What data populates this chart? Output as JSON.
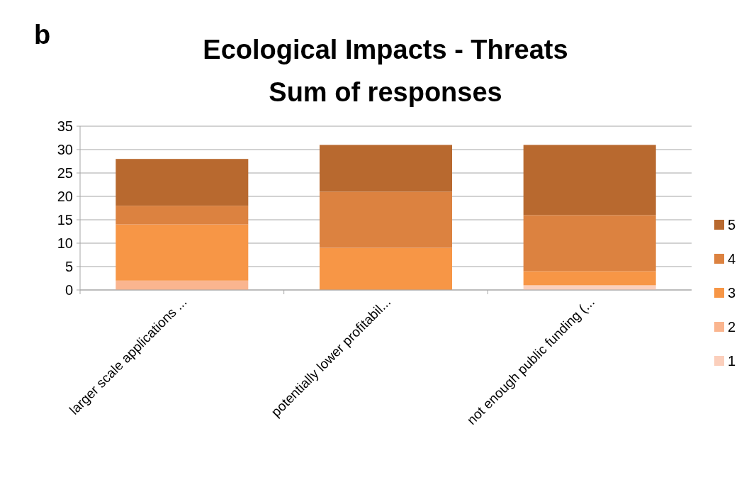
{
  "chart_data": {
    "type": "bar",
    "title": "Ecological  Impacts - Threats",
    "subtitle": "Sum of responses",
    "annotations": [
      "b"
    ],
    "categories": [
      "larger scale applications ...",
      "potentially lower profitabil...",
      "not enough public funding (..."
    ],
    "stacked": true,
    "ylim": [
      0,
      35
    ],
    "yticks": [
      0,
      5,
      10,
      15,
      20,
      25,
      30,
      35
    ],
    "grid": "y",
    "legend": "right",
    "series": [
      {
        "name": "1",
        "color": "#fbcfbc",
        "values": [
          0,
          0,
          1
        ]
      },
      {
        "name": "2",
        "color": "#fab58f",
        "values": [
          2,
          0,
          0
        ]
      },
      {
        "name": "3",
        "color": "#f79646",
        "values": [
          12,
          9,
          3
        ]
      },
      {
        "name": "4",
        "color": "#dc8240",
        "values": [
          4,
          12,
          12
        ]
      },
      {
        "name": "5",
        "color": "#b8692f",
        "values": [
          10,
          10,
          15
        ]
      }
    ]
  }
}
